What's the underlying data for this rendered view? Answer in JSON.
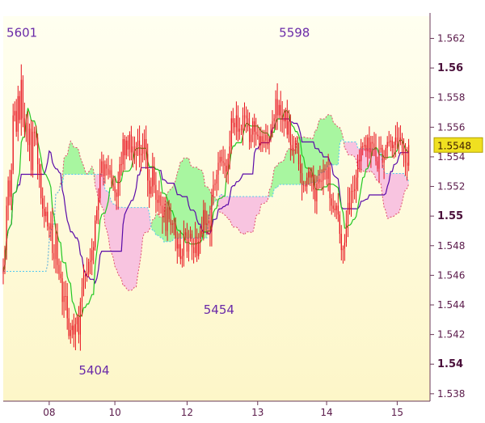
{
  "chart_data": {
    "type": "candlestick",
    "indicator": "ichimoku",
    "ylim": [
      1.5375,
      1.5635
    ],
    "xlim": [
      0,
      260
    ],
    "y_ticks": [
      {
        "value": 1.562,
        "label": "1.562",
        "major": false
      },
      {
        "value": 1.56,
        "label": "1.56",
        "major": true
      },
      {
        "value": 1.558,
        "label": "1.558",
        "major": false
      },
      {
        "value": 1.556,
        "label": "1.556",
        "major": false
      },
      {
        "value": 1.554,
        "label": "1.554",
        "major": false
      },
      {
        "value": 1.552,
        "label": "1.552",
        "major": false
      },
      {
        "value": 1.55,
        "label": "1.55",
        "major": true
      },
      {
        "value": 1.548,
        "label": "1.548",
        "major": false
      },
      {
        "value": 1.546,
        "label": "1.546",
        "major": false
      },
      {
        "value": 1.544,
        "label": "1.544",
        "major": false
      },
      {
        "value": 1.542,
        "label": "1.542",
        "major": false
      },
      {
        "value": 1.54,
        "label": "1.54",
        "major": true
      },
      {
        "value": 1.538,
        "label": "1.538",
        "major": false
      }
    ],
    "x_ticks": [
      {
        "x": 28,
        "label": "08"
      },
      {
        "x": 68,
        "label": "10"
      },
      {
        "x": 112,
        "label": "12"
      },
      {
        "x": 155,
        "label": "13"
      },
      {
        "x": 197,
        "label": "14"
      },
      {
        "x": 240,
        "label": "15"
      }
    ],
    "current_price": {
      "value": 1.5548,
      "label": "1.5548"
    },
    "annotations": [
      {
        "text": "5601",
        "x": 2,
        "y": 1.5621
      },
      {
        "text": "5598",
        "x": 168,
        "y": 1.5621
      },
      {
        "text": "5454",
        "x": 122,
        "y": 1.5434
      },
      {
        "text": "5404",
        "x": 46,
        "y": 1.5393
      }
    ],
    "colors": {
      "bg_top": "#fffff0",
      "bg_bottom": "#fdf6c8",
      "candle": "#e8101c",
      "bear_cloud": "#f8c4e0",
      "bull_cloud": "#a8f6a0",
      "cloud_edge_a": "#e0506a",
      "cloud_edge_b": "#50c8f0",
      "tenkan": "#22c822",
      "kijun": "#5a0aa8",
      "axis_text": "#5a1a4a",
      "price_box": "#f0e020"
    },
    "series": {
      "close": [
        1.5465,
        1.5477,
        1.5507,
        1.5524,
        1.5513,
        1.5531,
        1.5568,
        1.5571,
        1.5557,
        1.5581,
        1.5565,
        1.5592,
        1.5566,
        1.5557,
        1.5563,
        1.5548,
        1.5559,
        1.5531,
        1.5557,
        1.5556,
        1.5553,
        1.5535,
        1.5529,
        1.5512,
        1.5505,
        1.55,
        1.5503,
        1.5493,
        1.5491,
        1.5495,
        1.5475,
        1.5471,
        1.5489,
        1.5467,
        1.5461,
        1.5458,
        1.5442,
        1.5446,
        1.5446,
        1.5431,
        1.5419,
        1.5423,
        1.5426,
        1.542,
        1.5427,
        1.5432,
        1.542,
        1.5442,
        1.5452,
        1.546,
        1.546,
        1.5462,
        1.5469,
        1.547,
        1.5477,
        1.5479,
        1.5497,
        1.5504,
        1.5512,
        1.5529,
        1.5537,
        1.5527,
        1.5535,
        1.5532,
        1.5528,
        1.5531,
        1.5522,
        1.552,
        1.5516,
        1.5513,
        1.5524,
        1.5535,
        1.5535,
        1.5552,
        1.5541,
        1.5551,
        1.5545,
        1.5555,
        1.5543,
        1.5547,
        1.5541,
        1.5547,
        1.5551,
        1.5541,
        1.5542,
        1.5546,
        1.5552,
        1.5542,
        1.5524,
        1.5515,
        1.552,
        1.5532,
        1.5521,
        1.5511,
        1.5509,
        1.5514,
        1.5507,
        1.5499,
        1.5505,
        1.549,
        1.5506,
        1.5498,
        1.5494,
        1.5495,
        1.5495,
        1.5485,
        1.5478,
        1.5481,
        1.5471,
        1.5473,
        1.5487,
        1.5489,
        1.5476,
        1.5485,
        1.5488,
        1.5479,
        1.5475,
        1.5486,
        1.5473,
        1.5483,
        1.549,
        1.5488,
        1.5504,
        1.5494,
        1.5495,
        1.5497,
        1.549,
        1.5513,
        1.5521,
        1.5522,
        1.5528,
        1.5536,
        1.554,
        1.5537,
        1.5536,
        1.5534,
        1.553,
        1.5539,
        1.5547,
        1.5566,
        1.5563,
        1.556,
        1.5568,
        1.5557,
        1.5559,
        1.5558,
        1.5568,
        1.5568,
        1.5566,
        1.556,
        1.555,
        1.5555,
        1.5564,
        1.5557,
        1.5555,
        1.5554,
        1.5548,
        1.5554,
        1.555,
        1.5551,
        1.5555,
        1.5548,
        1.5552,
        1.5556,
        1.5564,
        1.5566,
        1.5579,
        1.5568,
        1.5575,
        1.5568,
        1.5565,
        1.5564,
        1.5571,
        1.5555,
        1.5564,
        1.5548,
        1.5544,
        1.5546,
        1.5551,
        1.5547,
        1.5535,
        1.5529,
        1.5521,
        1.5521,
        1.552,
        1.5526,
        1.553,
        1.5526,
        1.5528,
        1.5518,
        1.551,
        1.5522,
        1.5525,
        1.5523,
        1.5524,
        1.5532,
        1.5531,
        1.5525,
        1.5533,
        1.5512,
        1.5507,
        1.5505,
        1.5504,
        1.5507,
        1.5501,
        1.5488,
        1.5477,
        1.5478,
        1.5482,
        1.5495,
        1.5509,
        1.5505,
        1.5517,
        1.5517,
        1.5518,
        1.5526,
        1.5538,
        1.5537,
        1.5547,
        1.5547,
        1.5548,
        1.5544,
        1.5553,
        1.5543,
        1.555,
        1.5549,
        1.5546,
        1.5537,
        1.5532,
        1.5545,
        1.5546,
        1.5536,
        1.554,
        1.5546,
        1.555,
        1.555,
        1.5551,
        1.5546,
        1.5548,
        1.5553,
        1.555,
        1.555,
        1.5553,
        1.5546,
        1.5542,
        1.5536,
        1.5534,
        1.5548
      ]
    }
  }
}
